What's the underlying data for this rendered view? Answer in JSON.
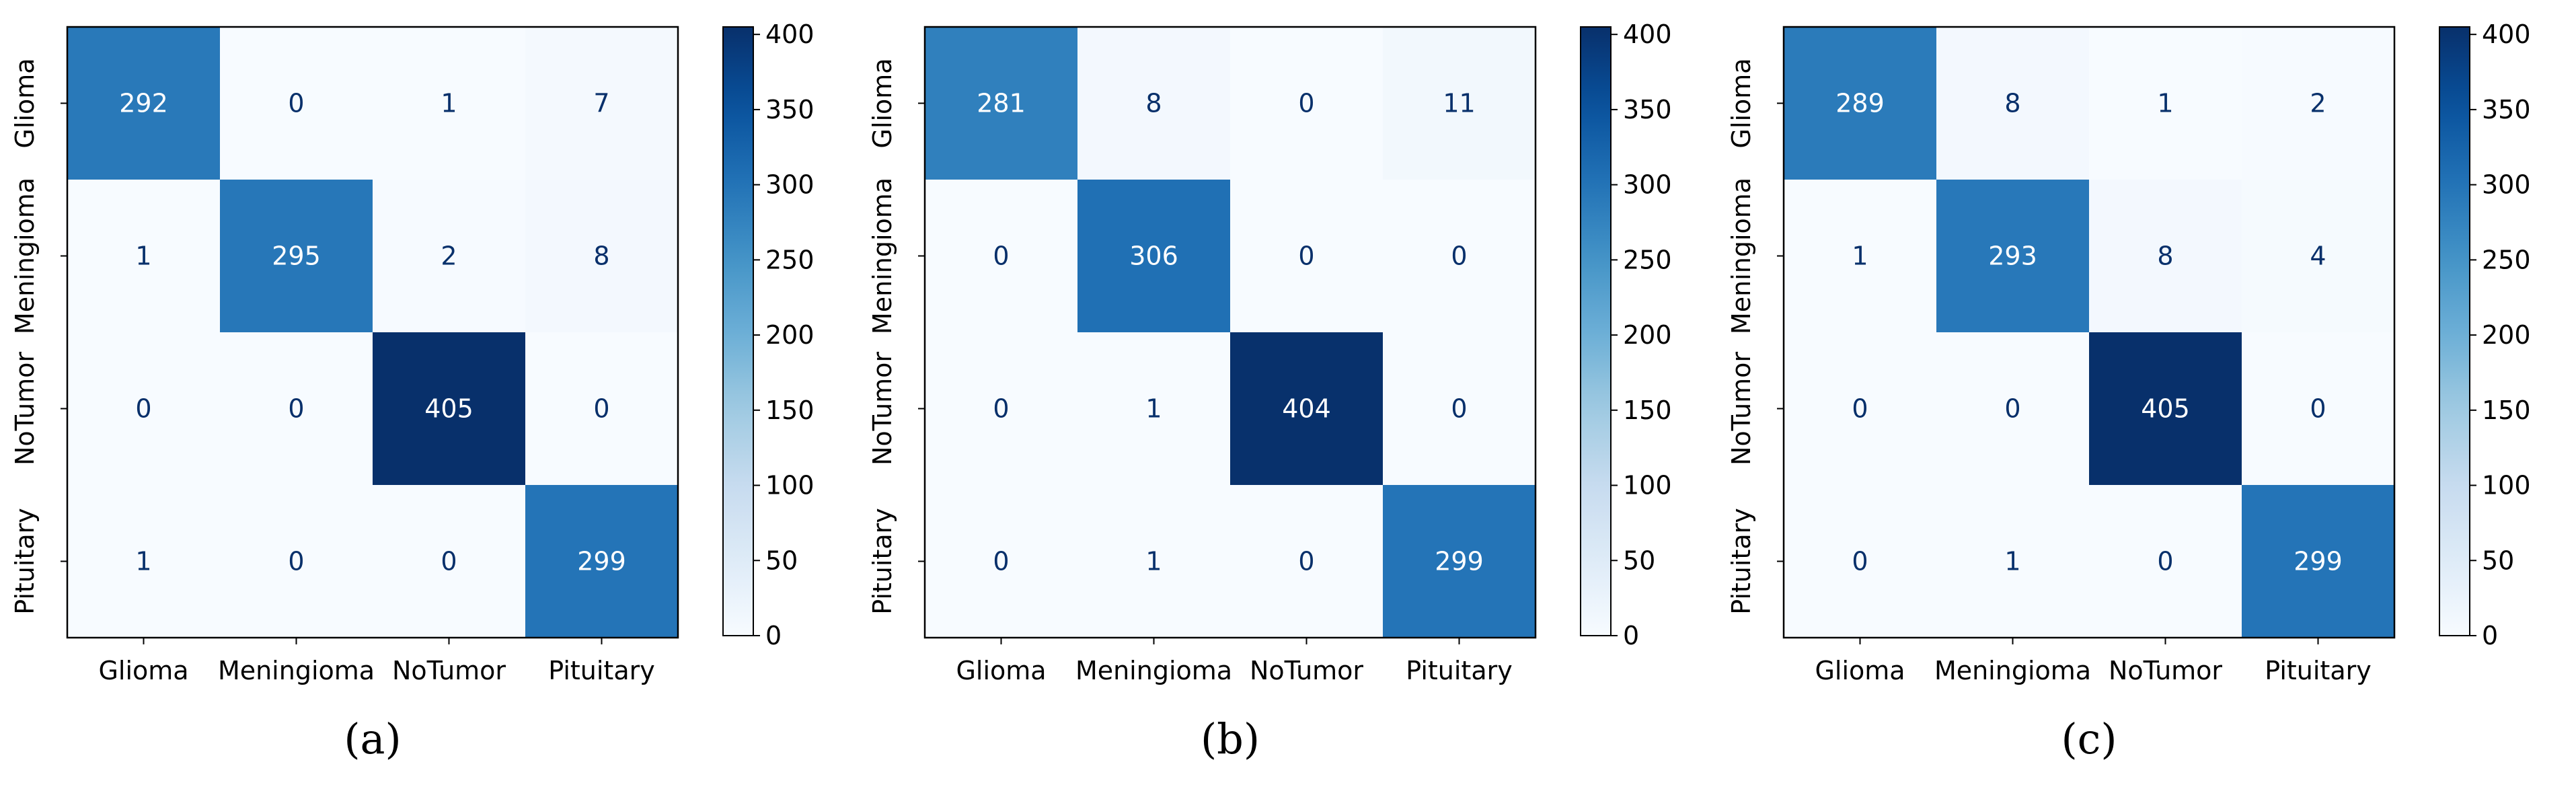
{
  "chart_data": [
    {
      "type": "heatmap",
      "panel_label": "(a)",
      "labels": [
        "Glioma",
        "Meningioma",
        "NoTumor",
        "Pituitary"
      ],
      "matrix": [
        [
          292,
          0,
          1,
          7
        ],
        [
          1,
          295,
          2,
          8
        ],
        [
          0,
          0,
          405,
          0
        ],
        [
          1,
          0,
          0,
          299
        ]
      ],
      "colorbar": {
        "min": 0,
        "max": 405,
        "ticks": [
          0,
          50,
          100,
          150,
          200,
          250,
          300,
          350,
          400
        ]
      },
      "colormap": "Blues"
    },
    {
      "type": "heatmap",
      "panel_label": "(b)",
      "labels": [
        "Glioma",
        "Meningioma",
        "NoTumor",
        "Pituitary"
      ],
      "matrix": [
        [
          281,
          8,
          0,
          11
        ],
        [
          0,
          306,
          0,
          0
        ],
        [
          0,
          1,
          404,
          0
        ],
        [
          0,
          1,
          0,
          299
        ]
      ],
      "colorbar": {
        "min": 0,
        "max": 405,
        "ticks": [
          0,
          50,
          100,
          150,
          200,
          250,
          300,
          350,
          400
        ]
      },
      "colormap": "Blues"
    },
    {
      "type": "heatmap",
      "panel_label": "(c)",
      "labels": [
        "Glioma",
        "Meningioma",
        "NoTumor",
        "Pituitary"
      ],
      "matrix": [
        [
          289,
          8,
          1,
          2
        ],
        [
          1,
          293,
          8,
          4
        ],
        [
          0,
          0,
          405,
          0
        ],
        [
          0,
          1,
          0,
          299
        ]
      ],
      "colorbar": {
        "min": 0,
        "max": 405,
        "ticks": [
          0,
          50,
          100,
          150,
          200,
          250,
          300,
          350,
          400
        ]
      },
      "colormap": "Blues"
    }
  ],
  "colors": {
    "light_text": "#ffffff",
    "dark_text": "#08306b",
    "axis": "#000000"
  }
}
